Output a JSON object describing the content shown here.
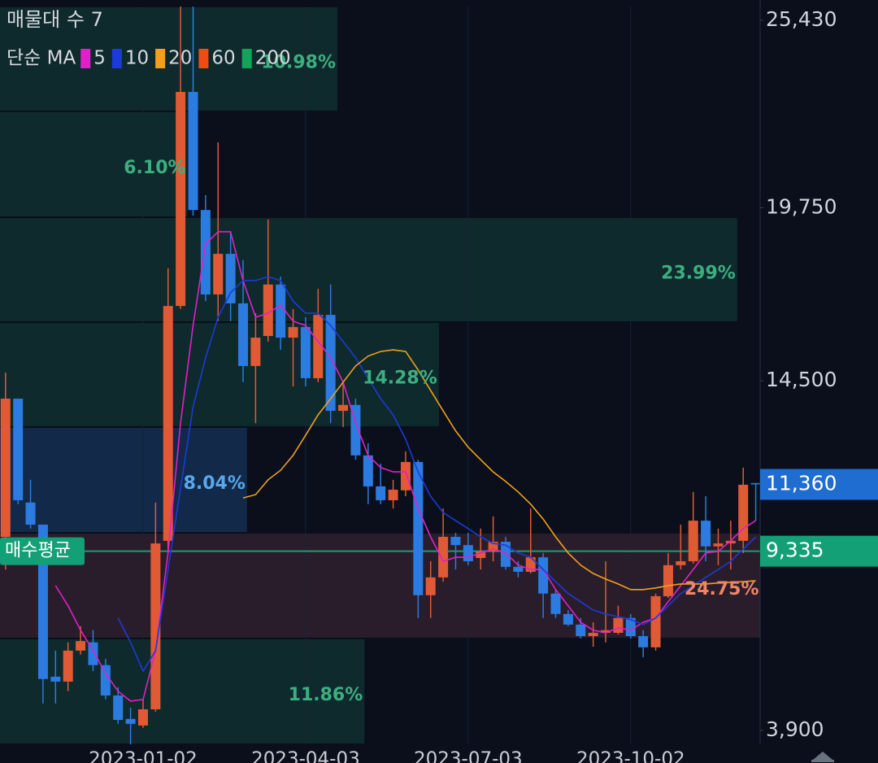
{
  "chart_data": {
    "type": "candlestick",
    "title": "매물대 수 7",
    "legend_title": "단순 MA",
    "categories": [
      null,
      null,
      null,
      null,
      null,
      null,
      null,
      null,
      null,
      null,
      null,
      "2023-01-02",
      null,
      null,
      null,
      null,
      null,
      null,
      null,
      null,
      null,
      null,
      null,
      null,
      "2023-04-03",
      null,
      null,
      null,
      null,
      null,
      null,
      null,
      null,
      null,
      null,
      null,
      null,
      "2023-07-03",
      null,
      null,
      null,
      null,
      null,
      null,
      null,
      null,
      null,
      null,
      null,
      null,
      "2023-10-02",
      null,
      null,
      null,
      null,
      null,
      null,
      null,
      null,
      null,
      null
    ],
    "open": [
      9770,
      13960,
      10810,
      10140,
      5530,
      5380,
      6320,
      6570,
      5880,
      4960,
      4250,
      4050,
      4540,
      9650,
      16770,
      23260,
      19680,
      17120,
      18350,
      16850,
      14950,
      15860,
      17420,
      15810,
      16130,
      14580,
      16500,
      13590,
      13770,
      12240,
      11300,
      10880,
      11180,
      12040,
      8000,
      8540,
      9770,
      9520,
      9130,
      9330,
      9620,
      8860,
      8710,
      9150,
      8050,
      7430,
      7110,
      6760,
      6860,
      6860,
      7310,
      6760,
      6420,
      7970,
      8910,
      9030,
      10260,
      9480,
      9570,
      9650,
      11400
    ],
    "high": [
      14750,
      13960,
      11500,
      10140,
      6320,
      6570,
      7060,
      6940,
      6070,
      5210,
      4590,
      4840,
      10810,
      17910,
      25850,
      25850,
      20130,
      21730,
      19020,
      18160,
      16550,
      19390,
      17660,
      16680,
      16430,
      17290,
      17420,
      14460,
      13960,
      12610,
      11990,
      11500,
      12360,
      12110,
      9030,
      10630,
      9890,
      9890,
      10020,
      10390,
      9770,
      9030,
      10630,
      9280,
      8170,
      7550,
      7310,
      7180,
      9030,
      7680,
      7430,
      6940,
      8050,
      9280,
      10140,
      11130,
      11000,
      10020,
      10260,
      11870,
      11400
    ],
    "low": [
      8780,
      10760,
      10020,
      4720,
      4720,
      5090,
      6200,
      5700,
      4840,
      4100,
      3480,
      3980,
      4470,
      9280,
      16680,
      19510,
      16920,
      16310,
      16310,
      14460,
      13220,
      15690,
      15440,
      14330,
      14330,
      14460,
      13220,
      13100,
      12110,
      10760,
      10760,
      10630,
      11000,
      7310,
      7310,
      8410,
      8780,
      8910,
      8780,
      9030,
      8780,
      8540,
      8660,
      7310,
      7310,
      7060,
      6690,
      6440,
      6570,
      6810,
      6690,
      6120,
      6320,
      7920,
      8780,
      8960,
      9030,
      8910,
      8780,
      9280,
      10260
    ],
    "close": [
      13960,
      10880,
      10140,
      5460,
      5380,
      6320,
      6610,
      5880,
      4960,
      4220,
      4100,
      4540,
      9570,
      16770,
      23260,
      19680,
      17120,
      18350,
      16850,
      14950,
      15810,
      17420,
      15810,
      16130,
      14580,
      16500,
      13590,
      13770,
      12240,
      11300,
      10880,
      11200,
      12040,
      8000,
      8540,
      9770,
      9520,
      9030,
      9330,
      9620,
      8860,
      8710,
      9150,
      8050,
      7430,
      7110,
      6760,
      6860,
      6940,
      7310,
      6760,
      6420,
      7970,
      8910,
      9030,
      10260,
      9480,
      9570,
      9650,
      11350,
      11360
    ],
    "up_color": "#e05a36",
    "down_color": "#2c7be0",
    "series": [
      {
        "name": "5",
        "color": "#e020c8",
        "values": [
          null,
          null,
          null,
          null,
          8290,
          7680,
          6940,
          6320,
          5630,
          5090,
          4790,
          4840,
          6320,
          9280,
          13220,
          16180,
          18650,
          19020,
          19020,
          17540,
          16430,
          16550,
          16800,
          16310,
          16180,
          15690,
          15200,
          14460,
          13220,
          12240,
          11870,
          11740,
          11740,
          10630,
          9770,
          9030,
          9150,
          9150,
          9280,
          9400,
          9280,
          8910,
          8780,
          8780,
          8170,
          7680,
          7180,
          6940,
          6860,
          7010,
          6940,
          7180,
          7310,
          7800,
          8290,
          8780,
          9280,
          9330,
          9650,
          10020,
          10260
        ]
      },
      {
        "name": "10",
        "color": "#1c3ad8",
        "values": [
          null,
          null,
          null,
          null,
          null,
          null,
          null,
          null,
          null,
          7310,
          6570,
          5700,
          6320,
          8780,
          11250,
          13710,
          15200,
          16430,
          17170,
          17540,
          17540,
          17660,
          17540,
          16920,
          16550,
          16550,
          16180,
          15690,
          15200,
          14580,
          13960,
          13470,
          12730,
          11740,
          11000,
          10510,
          10260,
          10020,
          9770,
          9570,
          9520,
          9280,
          9150,
          8780,
          8410,
          8050,
          7800,
          7550,
          7430,
          7350,
          7260,
          7110,
          7310,
          7680,
          8050,
          8290,
          8540,
          8780,
          9030,
          9400,
          9770
        ]
      },
      {
        "name": "20",
        "color": "#f0a01e",
        "values": [
          null,
          null,
          null,
          null,
          null,
          null,
          null,
          null,
          null,
          null,
          null,
          null,
          null,
          null,
          null,
          null,
          null,
          null,
          null,
          10950,
          11050,
          11500,
          11790,
          12240,
          12850,
          13470,
          13960,
          14460,
          14950,
          15250,
          15390,
          15440,
          15390,
          14830,
          14210,
          13590,
          12980,
          12490,
          12110,
          11740,
          11450,
          11130,
          10760,
          10310,
          9770,
          9280,
          8910,
          8660,
          8490,
          8340,
          8170,
          8170,
          8220,
          8290,
          8340,
          8340,
          8340,
          8370,
          8390,
          8410,
          8440
        ]
      },
      {
        "name": "60",
        "color": "#f24a12",
        "values": [
          null,
          null,
          null,
          null,
          null,
          null,
          null,
          null,
          null,
          null,
          null,
          null,
          null,
          null,
          null,
          null,
          null,
          null,
          null,
          null,
          null,
          null,
          null,
          null,
          null,
          null,
          null,
          null,
          null,
          null,
          null,
          null,
          null,
          null,
          null,
          null,
          null,
          null,
          null,
          null,
          null,
          null,
          null,
          null,
          null,
          null,
          null,
          null,
          null,
          null,
          null,
          null,
          null,
          null,
          null,
          null,
          null,
          null,
          null,
          null,
          null
        ]
      },
      {
        "name": "200",
        "color": "#12a55a",
        "values": [
          null,
          null,
          null,
          null,
          null,
          null,
          null,
          null,
          null,
          null,
          null,
          null,
          null,
          null,
          null,
          null,
          null,
          null,
          null,
          null,
          null,
          null,
          null,
          null,
          null,
          null,
          null,
          null,
          null,
          null,
          null,
          null,
          null,
          null,
          null,
          null,
          null,
          null,
          null,
          null,
          null,
          null,
          null,
          null,
          null,
          null,
          null,
          null,
          null,
          null,
          null,
          null,
          null,
          null,
          null,
          null,
          null,
          null,
          null,
          null,
          null
        ]
      }
    ],
    "volume_profile": {
      "bins": [
        3480,
        6690,
        9890,
        13100,
        16280,
        19460,
        22670,
        25850
      ],
      "values": [
        11.86,
        24.75,
        8.04,
        14.28,
        23.99,
        6.1,
        10.98
      ],
      "value_labels": [
        "11.86%",
        "24.75%",
        "8.04%",
        "14.28%",
        "23.99%",
        "6.10%",
        "10.98%"
      ],
      "colors": [
        "#0f2a2c",
        "#2a1d2b",
        "#12294a",
        "#0f2a2c",
        "#0f2a2c",
        "#0f2a2c",
        "#0f2a2c"
      ],
      "label_colors": [
        "#3cae80",
        "#f08468",
        "#58a8ea",
        "#3cae80",
        "#3cae80",
        "#3cae80",
        "#3cae80"
      ]
    },
    "avg_price": {
      "name": "매수평균",
      "value": 9335,
      "label": "9,335",
      "color": "#14a077"
    },
    "last_price": {
      "value": 11360,
      "label": "11,360",
      "color": "#1f6dd0"
    },
    "ylim": [
      3480,
      25850
    ],
    "yticks": [
      {
        "value": 25430,
        "label": "25,430"
      },
      {
        "value": 19750,
        "label": "19,750"
      },
      {
        "value": 14500,
        "label": "14,500"
      },
      {
        "value": 3900,
        "label": "3,900"
      }
    ],
    "grid": true
  }
}
